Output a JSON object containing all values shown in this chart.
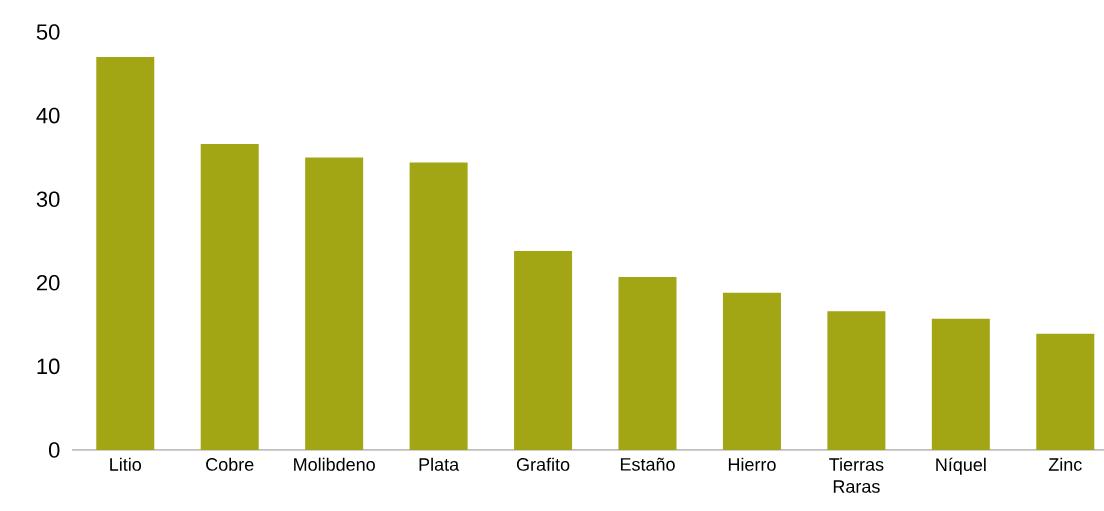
{
  "chart_data": {
    "type": "bar",
    "categories": [
      "Litio",
      "Cobre",
      "Molibdeno",
      "Plata",
      "Grafito",
      "Estaño",
      "Hierro",
      "Tierras Raras",
      "Níquel",
      "Zinc"
    ],
    "values": [
      47.0,
      36.6,
      35.0,
      34.4,
      23.8,
      20.7,
      18.8,
      16.6,
      15.7,
      13.9
    ],
    "color": "#a2a514",
    "ylim": [
      0,
      50
    ],
    "yticks": [
      0,
      10,
      20,
      30,
      40,
      50
    ]
  }
}
